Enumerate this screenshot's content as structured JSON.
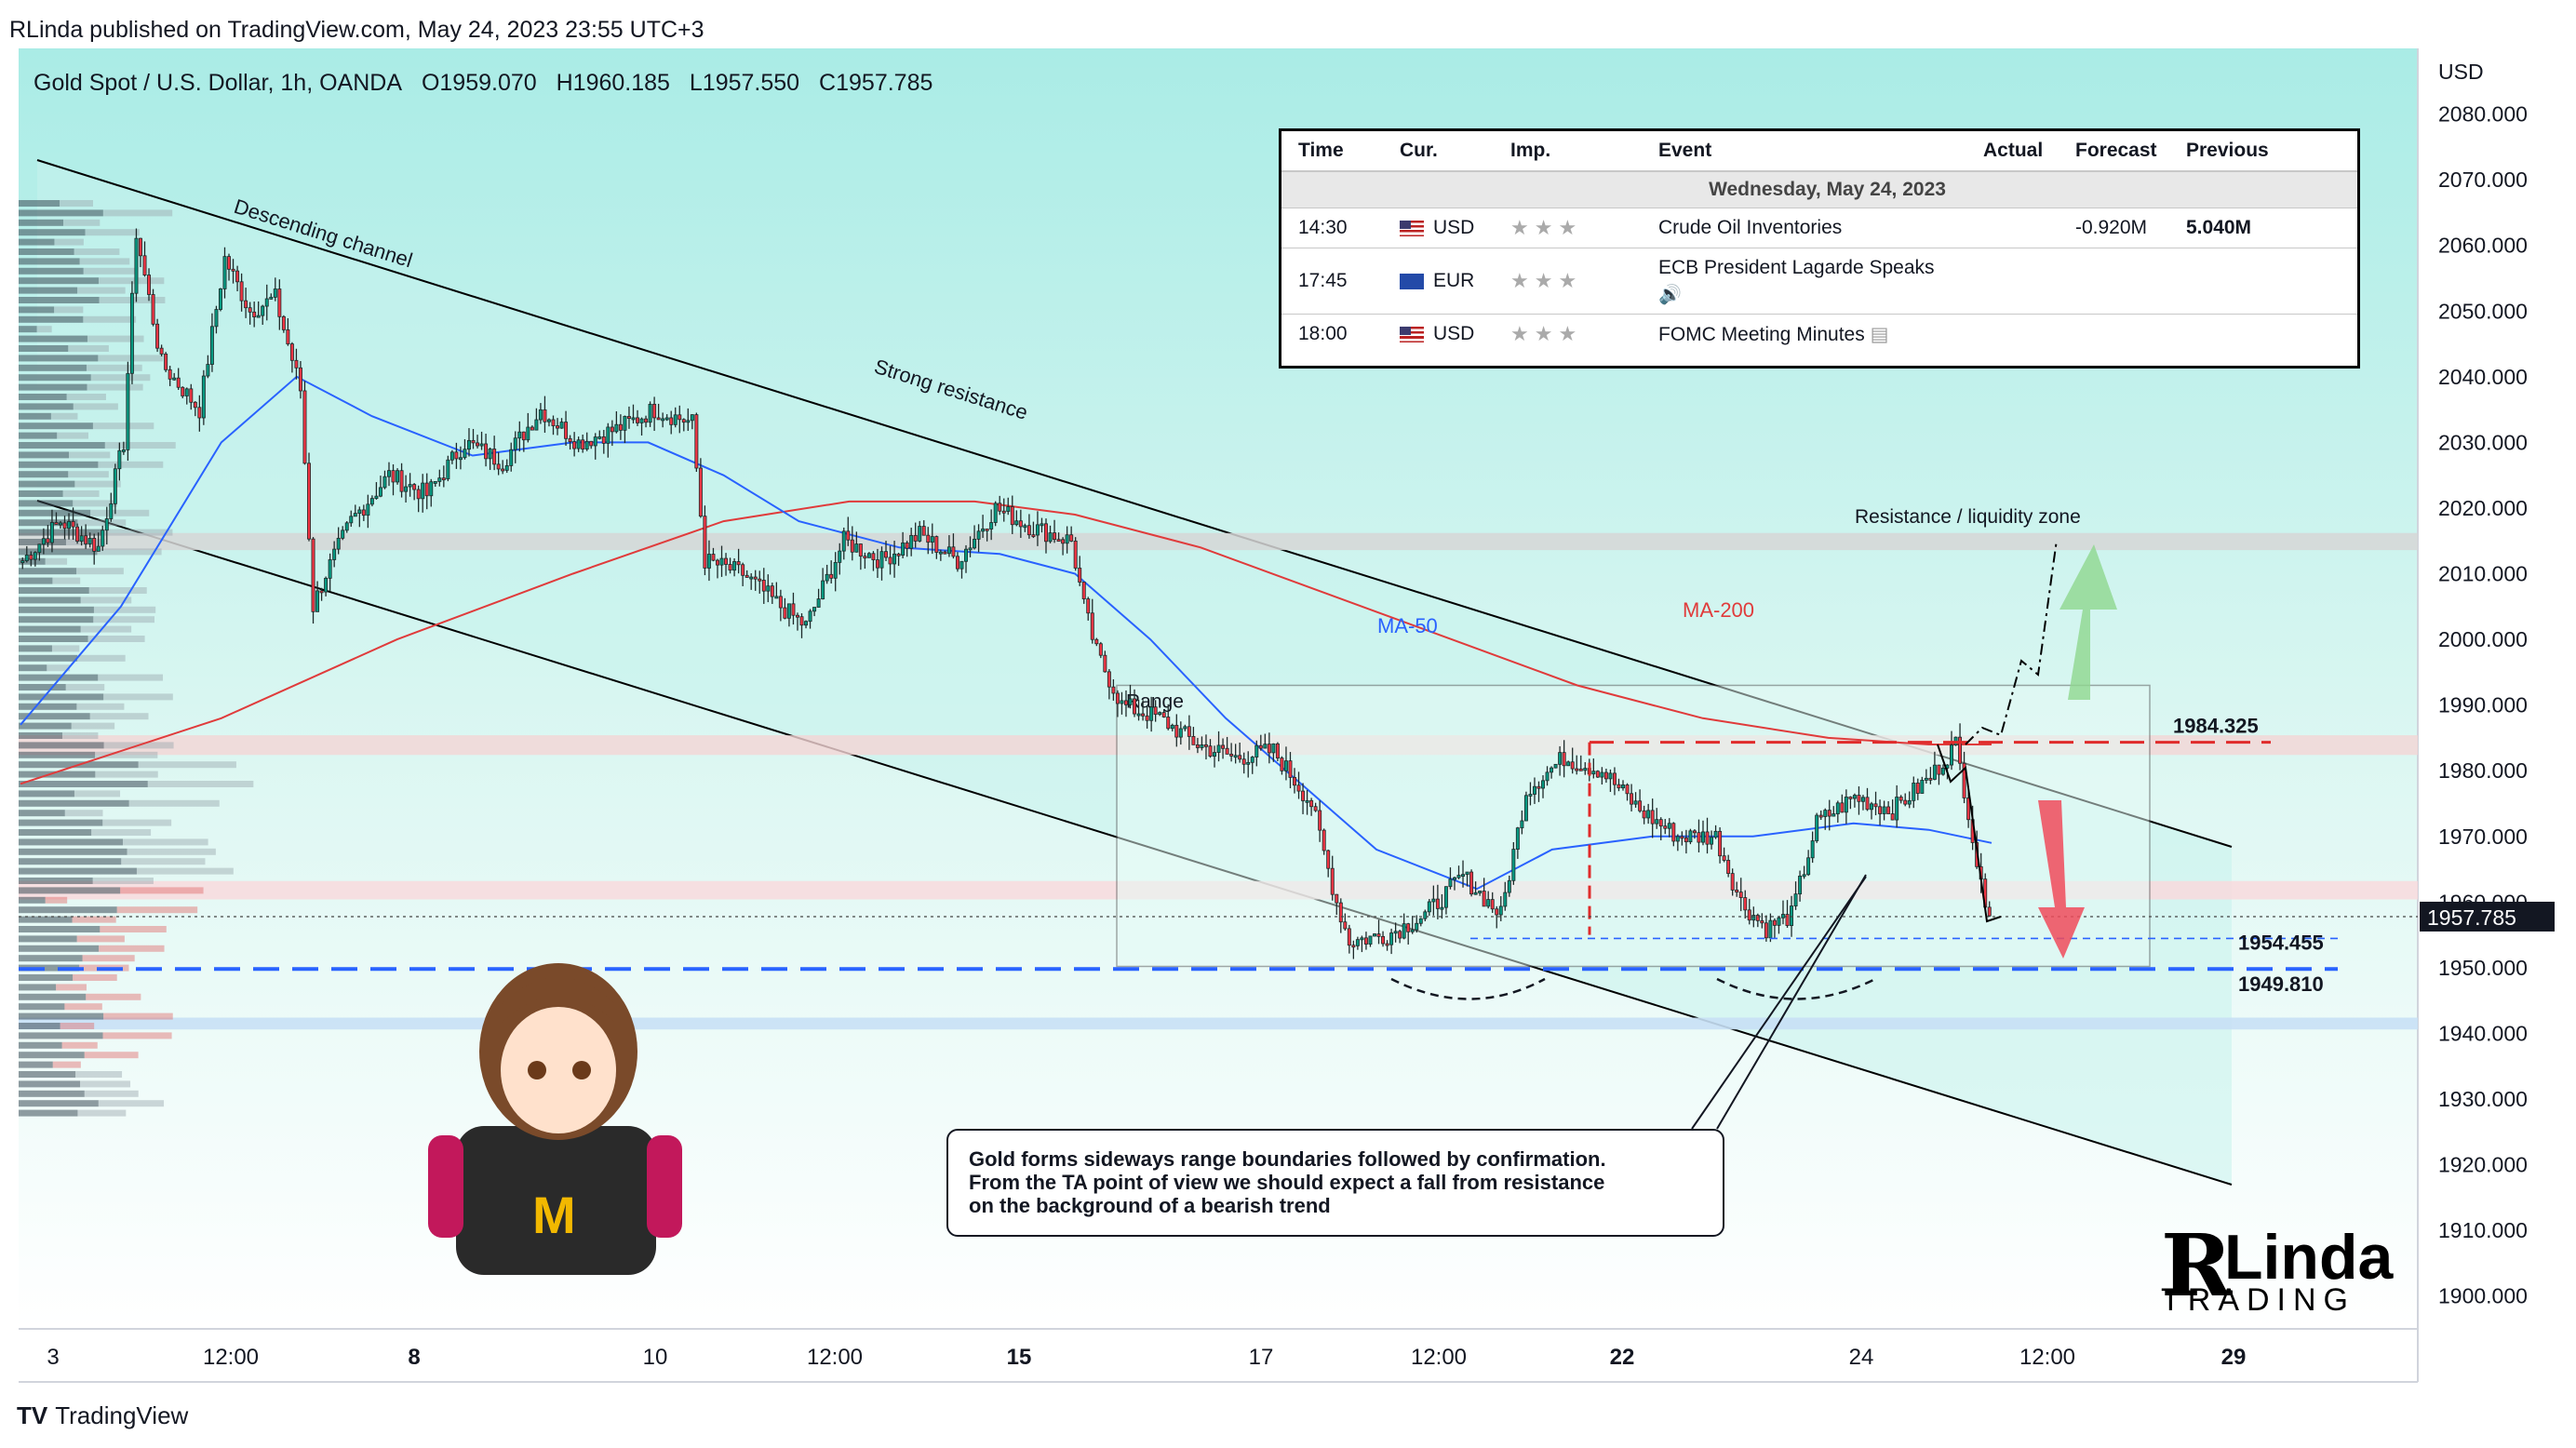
{
  "header": {
    "published": "RLinda published on TradingView.com, May 24, 2023 23:55 UTC+3",
    "symbol": "Gold Spot / U.S. Dollar, 1h, OANDA",
    "open": "O1959.070",
    "high": "H1960.185",
    "low": "L1957.550",
    "close": "C1957.785"
  },
  "footer": {
    "logo_text": "TradingView"
  },
  "calendar": {
    "headers": [
      "Time",
      "Cur.",
      "Imp.",
      "Event",
      "Actual",
      "Forecast",
      "Previous"
    ],
    "day": "Wednesday, May 24, 2023",
    "rows": [
      {
        "time": "14:30",
        "cur": "USD",
        "event": "Crude Oil Inventories",
        "actual": "",
        "forecast": "-0.920M",
        "previous": "5.040M"
      },
      {
        "time": "17:45",
        "cur": "EUR",
        "event": "ECB President Lagarde Speaks",
        "actual": "",
        "forecast": "",
        "previous": ""
      },
      {
        "time": "18:00",
        "cur": "USD",
        "event": "FOMC Meeting Minutes",
        "actual": "",
        "forecast": "",
        "previous": ""
      }
    ]
  },
  "note": {
    "line1": "Gold forms sideways range boundaries followed by confirmation.",
    "line2": "From the TA point of view we should expect a fall from resistance",
    "line3": "on the background of a bearish trend"
  },
  "brand": {
    "initial": "R",
    "name": "Linda",
    "sub": "TRADING"
  },
  "colors": {
    "bull": "#089981",
    "bear": "#f23645",
    "ma50": "#2962ff",
    "ma200": "#e03b3b",
    "channel_fill": "#b2f0e8"
  },
  "chart_data": {
    "type": "candlestick",
    "currency": "USD",
    "ylim": [
      1895,
      2090
    ],
    "y_ticks": [
      2080,
      2070,
      2060,
      2050,
      2040,
      2030,
      2020,
      2010,
      2000,
      1990,
      1980,
      1970,
      1960,
      1950,
      1940,
      1930,
      1920,
      1910,
      1900
    ],
    "x_ticks": [
      {
        "label": "3",
        "bold": false,
        "t": 0.02
      },
      {
        "label": "12:00",
        "bold": false,
        "t": 0.2
      },
      {
        "label": "8",
        "bold": true,
        "t": 0.41
      },
      {
        "label": "10",
        "bold": false,
        "t": 0.6
      },
      {
        "label": "12:00",
        "bold": false,
        "t": 0.7
      },
      {
        "label": "15",
        "bold": true,
        "t": 0.85
      },
      {
        "label": "17",
        "bold": false,
        "t": 0.98
      },
      {
        "label": "12:00",
        "bold": false,
        "t": 0.95
      },
      {
        "label": "22",
        "bold": true,
        "t": 1.0
      },
      {
        "label": "24",
        "bold": false,
        "t": 1.0
      },
      {
        "label": "12:00",
        "bold": false,
        "t": 1.0
      },
      {
        "label": "29",
        "bold": true,
        "t": 1.0
      }
    ],
    "last_price": "1957.785",
    "levels": [
      {
        "label": "1984.325",
        "value": 1984.325
      },
      {
        "label": "1954.455",
        "value": 1954.455
      },
      {
        "label": "1949.810",
        "value": 1949.81
      }
    ],
    "annotations": {
      "descending_channel": "Descending channel",
      "strong_resistance": "Strong resistance",
      "ma50": "MA-50",
      "ma200": "MA-200",
      "range": "Range",
      "resistance_zone": "Resistance / liquidity zone"
    },
    "price_path": [
      [
        1,
        2012
      ],
      [
        4,
        2018
      ],
      [
        7,
        2014
      ],
      [
        9,
        2030
      ],
      [
        10,
        2062
      ],
      [
        12,
        2042
      ],
      [
        15,
        2035
      ],
      [
        17,
        2058
      ],
      [
        19,
        2050
      ],
      [
        21,
        2052
      ],
      [
        23,
        2038
      ],
      [
        24,
        2005
      ],
      [
        25,
        2010
      ],
      [
        27,
        2018
      ],
      [
        30,
        2025
      ],
      [
        33,
        2022
      ],
      [
        36,
        2030
      ],
      [
        39,
        2027
      ],
      [
        42,
        2035
      ],
      [
        45,
        2030
      ],
      [
        48,
        2032
      ],
      [
        51,
        2035
      ],
      [
        54,
        2033
      ],
      [
        55,
        2012
      ],
      [
        58,
        2010
      ],
      [
        61,
        2005
      ],
      [
        63,
        2002
      ],
      [
        66,
        2015
      ],
      [
        69,
        2012
      ],
      [
        72,
        2016
      ],
      [
        75,
        2012
      ],
      [
        78,
        2020
      ],
      [
        81,
        2017
      ],
      [
        84,
        2015
      ],
      [
        85,
        2005
      ],
      [
        86,
        1998
      ],
      [
        88,
        1990
      ],
      [
        91,
        1988
      ],
      [
        94,
        1984
      ],
      [
        97,
        1982
      ],
      [
        100,
        1983
      ],
      [
        103,
        1975
      ],
      [
        105,
        1960
      ],
      [
        106,
        1954
      ],
      [
        109,
        1955
      ],
      [
        112,
        1958
      ],
      [
        115,
        1964
      ],
      [
        118,
        1958
      ],
      [
        120,
        1977
      ],
      [
        123,
        1982
      ],
      [
        126,
        1980
      ],
      [
        129,
        1974
      ],
      [
        132,
        1970
      ],
      [
        135,
        1970
      ],
      [
        137,
        1960
      ],
      [
        139,
        1956
      ],
      [
        141,
        1958
      ],
      [
        143,
        1972
      ],
      [
        146,
        1976
      ],
      [
        149,
        1974
      ],
      [
        152,
        1979
      ],
      [
        154,
        1984
      ],
      [
        155,
        1974
      ],
      [
        156,
        1962
      ],
      [
        157,
        1958
      ]
    ],
    "ma50_path": [
      [
        0,
        1987
      ],
      [
        8,
        2005
      ],
      [
        16,
        2030
      ],
      [
        22,
        2040
      ],
      [
        28,
        2034
      ],
      [
        36,
        2028
      ],
      [
        44,
        2030
      ],
      [
        50,
        2030
      ],
      [
        56,
        2025
      ],
      [
        62,
        2018
      ],
      [
        70,
        2014
      ],
      [
        78,
        2013
      ],
      [
        84,
        2010
      ],
      [
        90,
        2000
      ],
      [
        96,
        1988
      ],
      [
        102,
        1978
      ],
      [
        108,
        1968
      ],
      [
        116,
        1962
      ],
      [
        122,
        1968
      ],
      [
        130,
        1970
      ],
      [
        138,
        1970
      ],
      [
        146,
        1972
      ],
      [
        152,
        1971
      ],
      [
        157,
        1969
      ]
    ],
    "ma200_path": [
      [
        0,
        1978
      ],
      [
        16,
        1988
      ],
      [
        30,
        2000
      ],
      [
        44,
        2010
      ],
      [
        56,
        2018
      ],
      [
        66,
        2021
      ],
      [
        76,
        2021
      ],
      [
        84,
        2019
      ],
      [
        94,
        2014
      ],
      [
        104,
        2007
      ],
      [
        114,
        2000
      ],
      [
        124,
        1993
      ],
      [
        134,
        1988
      ],
      [
        144,
        1985
      ],
      [
        152,
        1984
      ],
      [
        157,
        1984
      ]
    ]
  }
}
